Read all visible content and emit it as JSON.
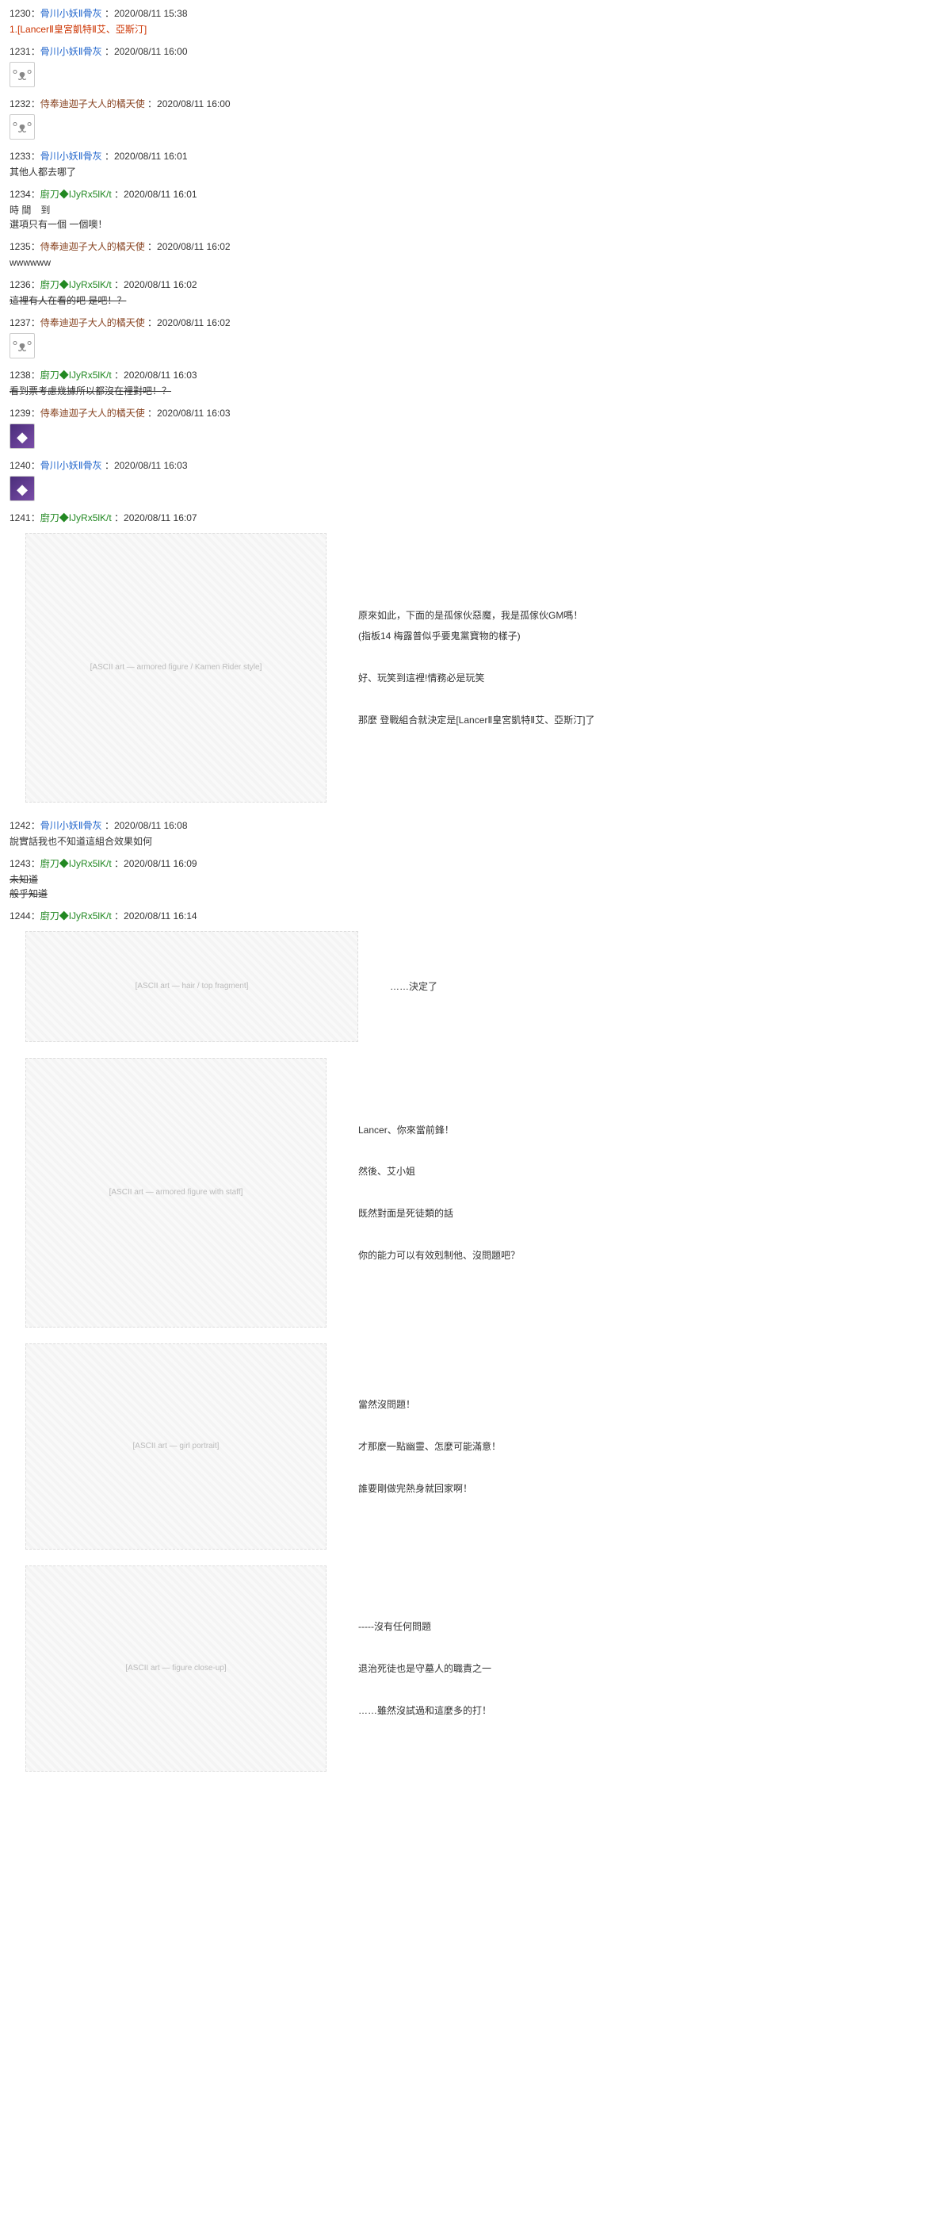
{
  "posts": [
    {
      "num": "1230",
      "userClass": "post-user",
      "user": "骨川小妖Ⅱ骨灰",
      "date": "2020/08/11 15:38",
      "body": [
        {
          "cls": "red-text",
          "text": "1.[LancerⅡ皇宮凱特Ⅱ艾、亞斯汀]"
        }
      ]
    },
    {
      "num": "1231",
      "userClass": "post-user",
      "user": "骨川小妖Ⅱ骨灰",
      "date": "2020/08/11 16:00",
      "avatar": {
        "type": "cute"
      }
    },
    {
      "num": "1232",
      "userClass": "post-user brown",
      "user": "侍奉迪迦子大人的橘天使",
      "date": "2020/08/11 16:00",
      "avatar": {
        "type": "cute"
      }
    },
    {
      "num": "1233",
      "userClass": "post-user",
      "user": "骨川小妖Ⅱ骨灰",
      "date": "2020/08/11 16:01",
      "body": [
        {
          "text": "其他人都去哪了"
        }
      ]
    },
    {
      "num": "1234",
      "userClass": "post-user green",
      "user": "廚刀◆IJyRx5lK/t",
      "date": "2020/08/11 16:01",
      "body": [
        {
          "text": "時 間　到"
        },
        {
          "text": "選項只有一個 一個噢！"
        }
      ]
    },
    {
      "num": "1235",
      "userClass": "post-user brown",
      "user": "侍奉迪迦子大人的橘天使",
      "date": "2020/08/11 16:02",
      "body": [
        {
          "text": "wwwwww"
        }
      ]
    },
    {
      "num": "1236",
      "userClass": "post-user green",
      "user": "廚刀◆IJyRx5lK/t",
      "date": "2020/08/11 16:02",
      "body": [
        {
          "cls": "struck",
          "text": "這裡有人在看的吧 是吧！？"
        }
      ]
    },
    {
      "num": "1237",
      "userClass": "post-user brown",
      "user": "侍奉迪迦子大人的橘天使",
      "date": "2020/08/11 16:02",
      "avatar": {
        "type": "cute"
      }
    },
    {
      "num": "1238",
      "userClass": "post-user green",
      "user": "廚刀◆IJyRx5lK/t",
      "date": "2020/08/11 16:03",
      "body": [
        {
          "cls": "struck",
          "text": "看到票考慮幾據所以都沒在裡對吧！？"
        }
      ]
    },
    {
      "num": "1239",
      "userClass": "post-user brown",
      "user": "侍奉迪迦子大人的橘天使",
      "date": "2020/08/11 16:03",
      "avatar": {
        "type": "purple"
      }
    },
    {
      "num": "1240",
      "userClass": "post-user",
      "user": "骨川小妖Ⅱ骨灰",
      "date": "2020/08/11 16:03",
      "avatar": {
        "type": "purple"
      }
    },
    {
      "num": "1241",
      "userClass": "post-user green",
      "user": "廚刀◆IJyRx5lK/t",
      "date": "2020/08/11 16:07",
      "ascii": {
        "size": "h-lg",
        "label": "[ASCII art — armored figure / Kamen Rider style]",
        "lines": [
          "原來如此，下面的是孤傢伙惡魔，我是孤傢伙GM嗎！",
          "(指板14 梅露普似乎要鬼黨寶物的樣子)",
          "",
          "好、玩笑到這裡!情務必是玩笑",
          "",
          "那麼 登戰組合就決定是[LancerⅡ皇宮凱特Ⅱ艾、亞斯汀]了"
        ]
      }
    },
    {
      "num": "1242",
      "userClass": "post-user",
      "user": "骨川小妖Ⅱ骨灰",
      "date": "2020/08/11 16:08",
      "body": [
        {
          "text": "說實話我也不知道這組合效果如何"
        }
      ]
    },
    {
      "num": "1243",
      "userClass": "post-user green",
      "user": "廚刀◆IJyRx5lK/t",
      "date": "2020/08/11 16:09",
      "body": [
        {
          "cls": "struck",
          "text": "未知道"
        },
        {
          "cls": "struck",
          "text": "般乎知道"
        }
      ]
    },
    {
      "num": "1244",
      "userClass": "post-user green",
      "user": "廚刀◆IJyRx5lK/t",
      "date": "2020/08/11 16:14",
      "asciiMulti": [
        {
          "size": "h-sm",
          "label": "[ASCII art — hair / top fragment]",
          "lines": [
            "……決定了"
          ]
        },
        {
          "size": "h-tall",
          "label": "[ASCII art — armored figure with staff]",
          "lines": [
            "Lancer、你來當前鋒！",
            "",
            "然後、艾小姐",
            "",
            "既然對面是死徒類的話",
            "",
            "你的能力可以有效剋制他、沒問題吧？"
          ]
        },
        {
          "size": "h-md",
          "label": "[ASCII art — girl portrait]",
          "lines": [
            "當然沒問題！",
            "",
            "才那麼一點幽靈、怎麼可能滿意！",
            "",
            "誰要剛做完熱身就回家啊！"
          ]
        },
        {
          "size": "h-md",
          "label": "[ASCII art — figure close-up]",
          "lines": [
            "-----沒有任何問題",
            "",
            "退治死徒也是守墓人的職責之一",
            "",
            "……雖然沒試過和這麼多的打！"
          ]
        }
      ]
    }
  ],
  "colors": {
    "link": "#2266cc",
    "green": "#228822",
    "brown": "#884422",
    "red": "#cc3300",
    "text": "#333333",
    "ascii": "#999999",
    "background": "#ffffff"
  }
}
